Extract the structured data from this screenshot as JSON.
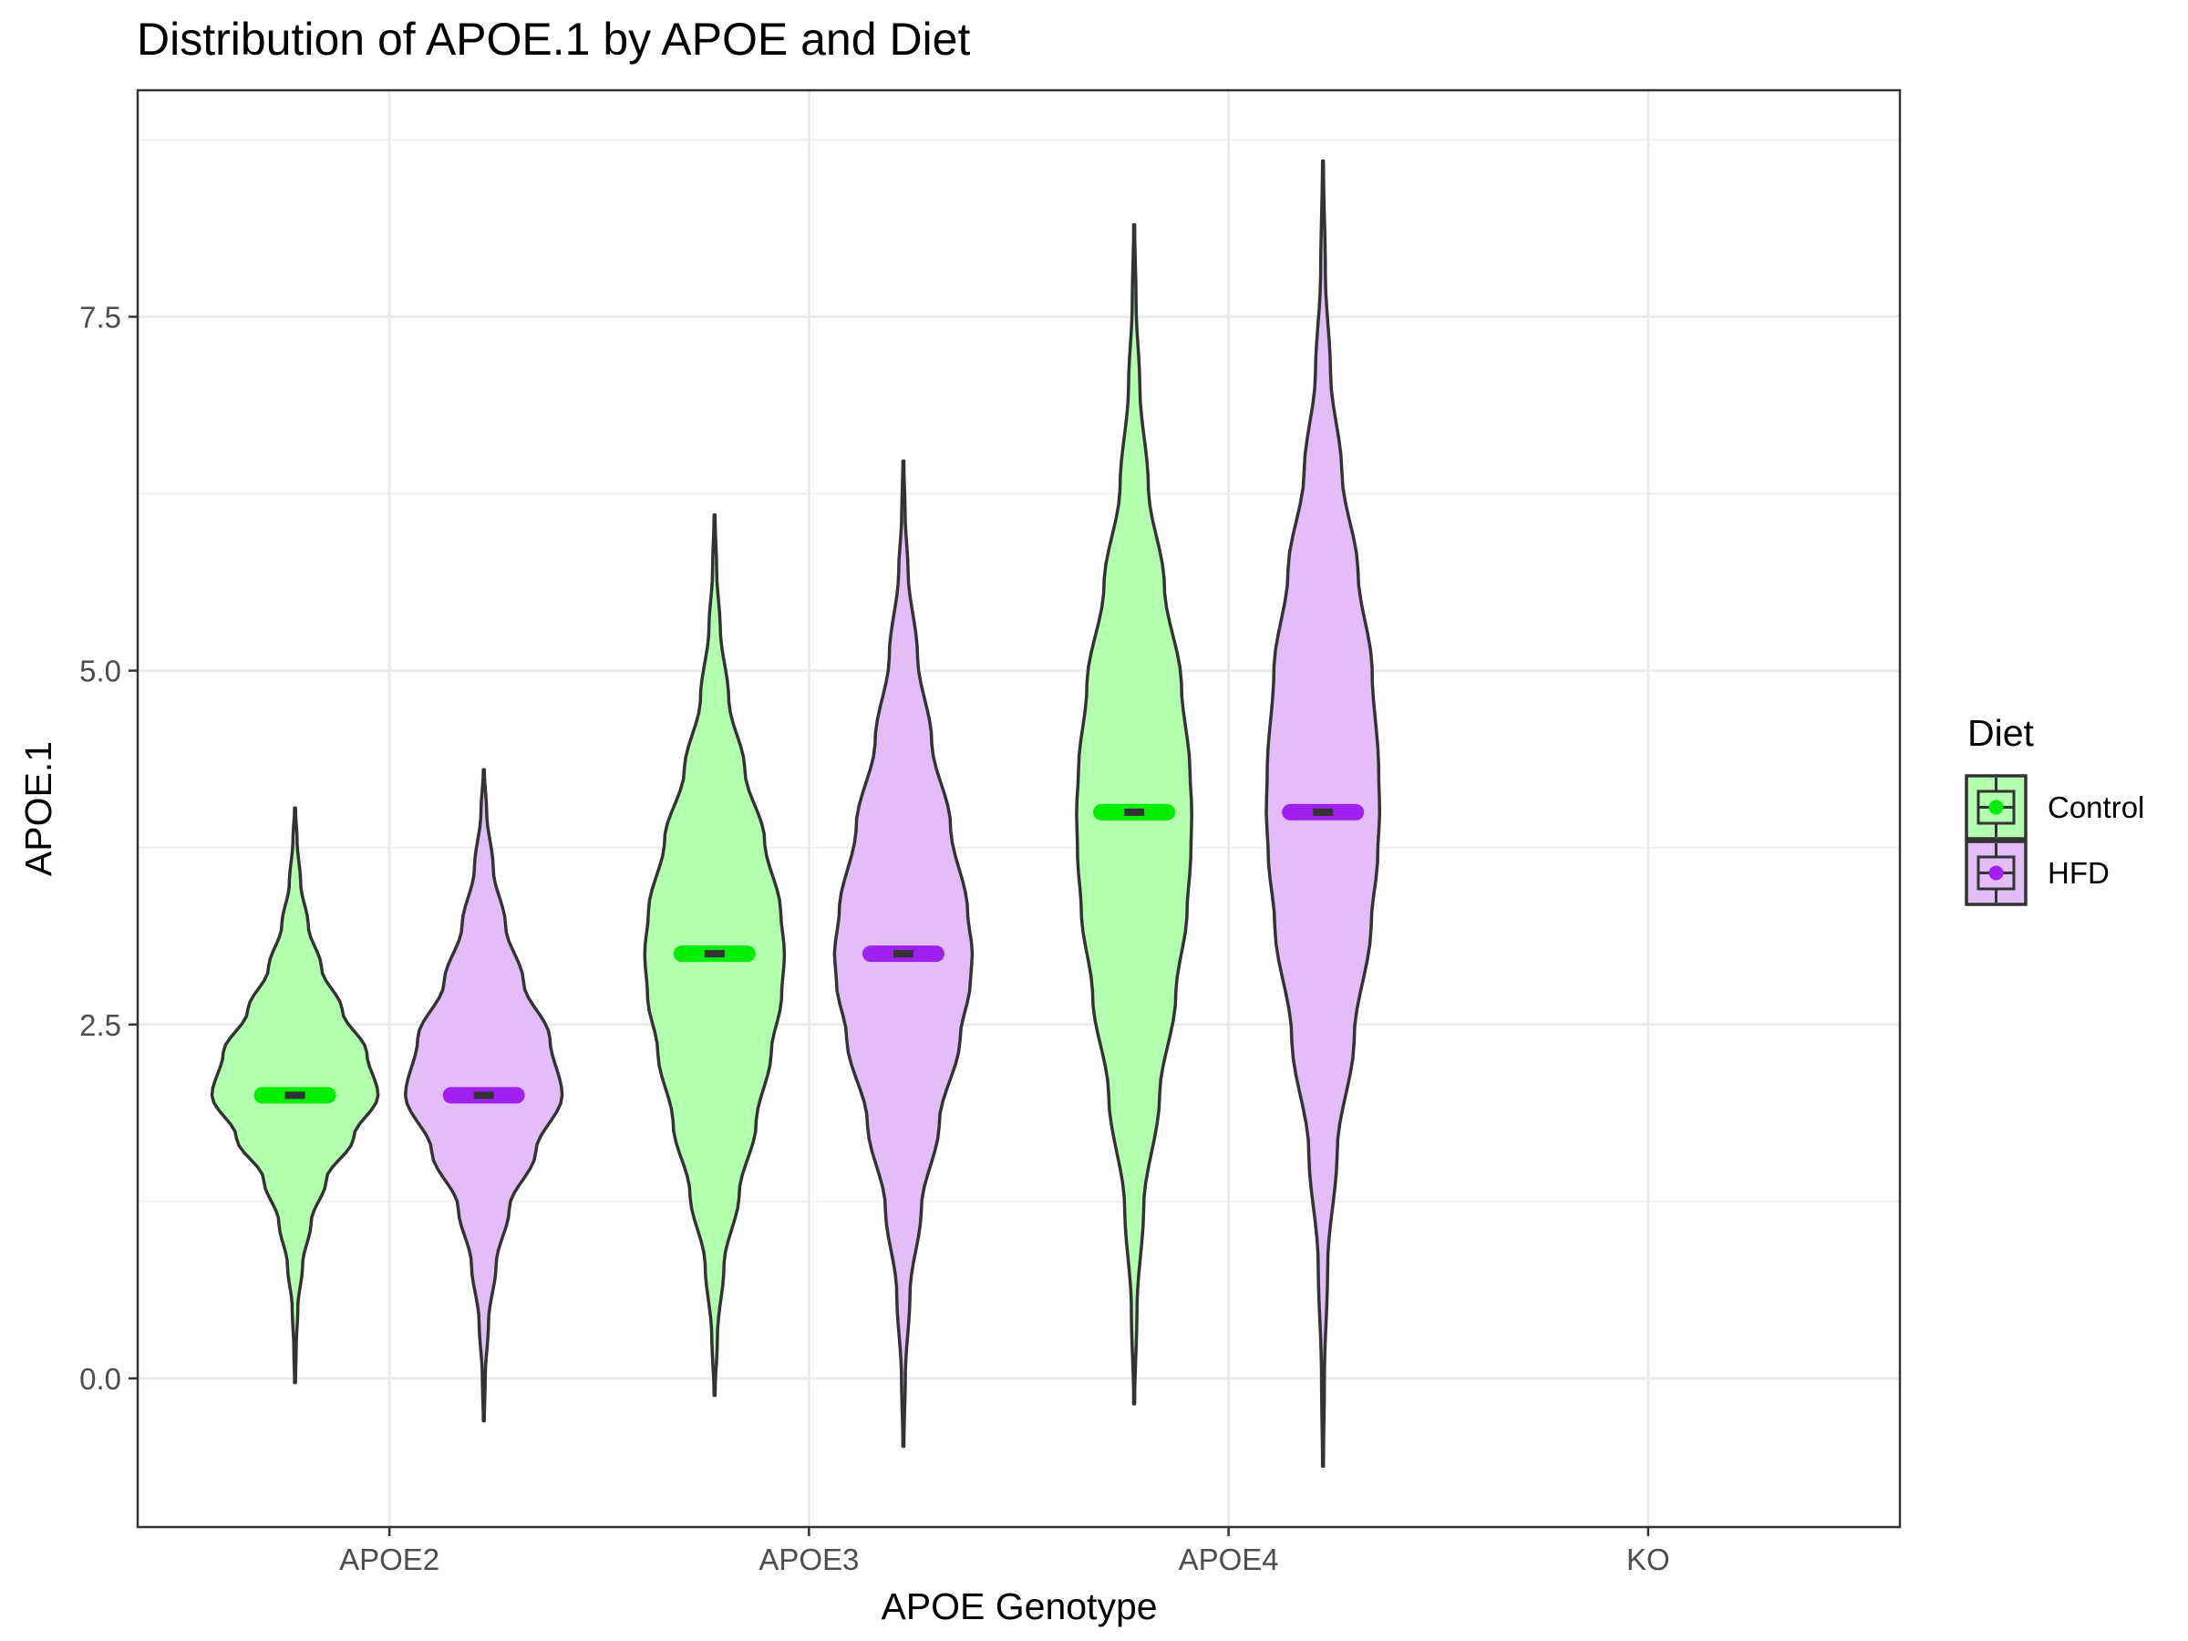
{
  "chart_data": {
    "type": "violin",
    "title": "Distribution of APOE.1 by APOE and Diet",
    "xlabel": "APOE Genotype",
    "ylabel": "APOE.1",
    "categories": [
      "APOE2",
      "APOE3",
      "APOE4",
      "KO"
    ],
    "y_ticks": [
      {
        "value": 0,
        "label": "0.0"
      },
      {
        "value": 2.5,
        "label": "2.5"
      },
      {
        "value": 5,
        "label": "5.0"
      },
      {
        "value": 7.5,
        "label": "7.5"
      }
    ],
    "ylim": [
      -1.05,
      9.1
    ],
    "grid": true,
    "legend": {
      "title": "Diet",
      "position": "right",
      "entries": [
        {
          "name": "Control",
          "fill": "#b3ffb0",
          "median_color": "#00ee00"
        },
        {
          "name": "HFD",
          "fill": "#e2bdf8",
          "median_color": "#a020f0"
        }
      ]
    },
    "series": [
      {
        "name": "Control",
        "fill": "#b3ffb0",
        "median_color": "#00ee00",
        "violins": [
          {
            "category": "APOE2",
            "min": -0.03,
            "max": 4.03,
            "median": 2.0,
            "profile": [
              [
                -0.03,
                0.005
              ],
              [
                0.2,
                0.012
              ],
              [
                0.5,
                0.03
              ],
              [
                0.8,
                0.08
              ],
              [
                1.1,
                0.17
              ],
              [
                1.4,
                0.33
              ],
              [
                1.7,
                0.62
              ],
              [
                2.0,
                0.88
              ],
              [
                2.3,
                0.76
              ],
              [
                2.6,
                0.5
              ],
              [
                2.9,
                0.28
              ],
              [
                3.2,
                0.14
              ],
              [
                3.5,
                0.06
              ],
              [
                3.8,
                0.022
              ],
              [
                4.03,
                0.005
              ]
            ]
          },
          {
            "category": "APOE3",
            "min": -0.12,
            "max": 6.1,
            "median": 3.0,
            "profile": [
              [
                -0.12,
                0.005
              ],
              [
                0.3,
                0.03
              ],
              [
                0.8,
                0.1
              ],
              [
                1.3,
                0.26
              ],
              [
                1.8,
                0.44
              ],
              [
                2.3,
                0.6
              ],
              [
                2.7,
                0.71
              ],
              [
                3.0,
                0.74
              ],
              [
                3.3,
                0.7
              ],
              [
                3.8,
                0.53
              ],
              [
                4.3,
                0.32
              ],
              [
                4.8,
                0.15
              ],
              [
                5.3,
                0.06
              ],
              [
                5.7,
                0.022
              ],
              [
                6.1,
                0.005
              ]
            ]
          },
          {
            "category": "APOE4",
            "min": -0.18,
            "max": 8.15,
            "median": 4.0,
            "profile": [
              [
                -0.18,
                0.005
              ],
              [
                0.5,
                0.03
              ],
              [
                1.2,
                0.1
              ],
              [
                2.0,
                0.27
              ],
              [
                2.7,
                0.44
              ],
              [
                3.3,
                0.56
              ],
              [
                3.7,
                0.6
              ],
              [
                4.0,
                0.61
              ],
              [
                4.3,
                0.59
              ],
              [
                4.9,
                0.5
              ],
              [
                5.6,
                0.32
              ],
              [
                6.3,
                0.15
              ],
              [
                7.0,
                0.06
              ],
              [
                7.6,
                0.02
              ],
              [
                8.15,
                0.005
              ]
            ]
          }
        ]
      },
      {
        "name": "HFD",
        "fill": "#e2bdf8",
        "median_color": "#a020f0",
        "violins": [
          {
            "category": "APOE2",
            "min": -0.3,
            "max": 4.3,
            "median": 2.0,
            "profile": [
              [
                -0.3,
                0.005
              ],
              [
                0.0,
                0.015
              ],
              [
                0.4,
                0.05
              ],
              [
                0.8,
                0.13
              ],
              [
                1.2,
                0.27
              ],
              [
                1.6,
                0.55
              ],
              [
                2.0,
                0.83
              ],
              [
                2.4,
                0.7
              ],
              [
                2.8,
                0.42
              ],
              [
                3.2,
                0.23
              ],
              [
                3.6,
                0.1
              ],
              [
                4.0,
                0.03
              ],
              [
                4.3,
                0.005
              ]
            ]
          },
          {
            "category": "APOE3",
            "min": -0.48,
            "max": 6.48,
            "median": 3.0,
            "profile": [
              [
                -0.48,
                0.005
              ],
              [
                0.0,
                0.02
              ],
              [
                0.6,
                0.07
              ],
              [
                1.2,
                0.19
              ],
              [
                1.8,
                0.38
              ],
              [
                2.4,
                0.6
              ],
              [
                2.8,
                0.71
              ],
              [
                3.0,
                0.73
              ],
              [
                3.3,
                0.68
              ],
              [
                3.9,
                0.5
              ],
              [
                4.5,
                0.3
              ],
              [
                5.1,
                0.15
              ],
              [
                5.7,
                0.05
              ],
              [
                6.1,
                0.018
              ],
              [
                6.48,
                0.005
              ]
            ]
          },
          {
            "category": "APOE4",
            "min": -0.62,
            "max": 8.6,
            "median": 4.0,
            "profile": [
              [
                -0.62,
                0.005
              ],
              [
                0.0,
                0.015
              ],
              [
                0.8,
                0.05
              ],
              [
                1.6,
                0.15
              ],
              [
                2.4,
                0.33
              ],
              [
                3.2,
                0.51
              ],
              [
                3.7,
                0.58
              ],
              [
                4.0,
                0.6
              ],
              [
                4.3,
                0.59
              ],
              [
                5.0,
                0.52
              ],
              [
                5.7,
                0.37
              ],
              [
                6.4,
                0.2
              ],
              [
                7.1,
                0.08
              ],
              [
                7.8,
                0.025
              ],
              [
                8.6,
                0.005
              ]
            ]
          }
        ]
      }
    ]
  }
}
